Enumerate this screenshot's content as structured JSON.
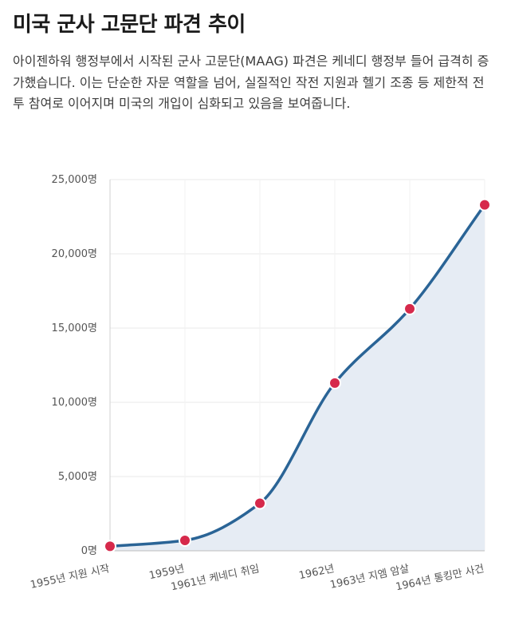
{
  "title": "미국 군사 고문단 파견 추이",
  "description": "아이젠하워 행정부에서 시작된 군사 고문단(MAAG) 파견은 케네디 행정부 들어 급격히 증가했습니다. 이는 단순한 자문 역할을 넘어, 실질적인 작전 지원과 헬기 조종 등 제한적 전투 참여로 이어지며 미국의 개입이 심화되고 있음을 보여줍니다.",
  "colors": {
    "line": "#2a6496",
    "area": "#e6ecf4",
    "marker": "#d6294b",
    "grid": "#e9e9e9"
  },
  "chart_data": {
    "type": "area",
    "x": [
      1955,
      1959,
      1961,
      1962,
      1963,
      1964
    ],
    "values": [
      300,
      700,
      3200,
      11300,
      16300,
      23300
    ],
    "ylim": [
      0,
      25000
    ],
    "yticks": [
      0,
      5000,
      10000,
      15000,
      20000,
      25000
    ],
    "ytick_labels": [
      "0명",
      "5,000명",
      "10,000명",
      "15,000명",
      "20,000명",
      "25,000명"
    ],
    "xtick_labels": [
      "1955년 지원 시작",
      "1959년",
      "1961년 케네디 취임",
      "1962년",
      "1963년 지엠 암살",
      "1964년 통킹만 사건"
    ],
    "grid": true,
    "legend": "none"
  }
}
